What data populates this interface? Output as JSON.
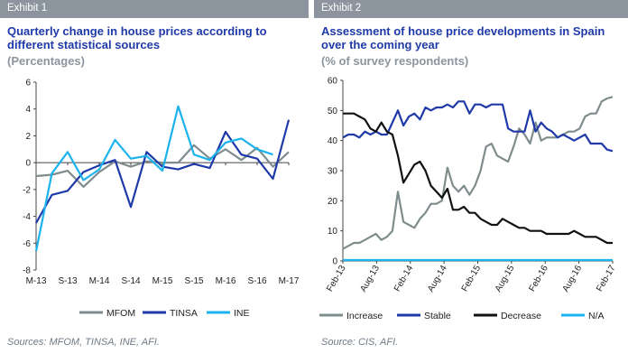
{
  "panels": [
    {
      "exhibit": "Exhibit 1",
      "title": "Quarterly change in house prices according to different statistical sources",
      "subtitle": "(Percentages)",
      "source": "Sources: MFOM, TINSA, INE, AFI."
    },
    {
      "exhibit": "Exhibit 2",
      "title": "Assessment of house price developments in Spain over the coming year",
      "subtitle": "(% of survey respondents)",
      "source": "Source: CIS, AFI."
    }
  ],
  "chart_data": [
    {
      "type": "line",
      "ylim": [
        -8,
        6
      ],
      "yticks": [
        -8,
        -6,
        -4,
        -2,
        0,
        2,
        4,
        6
      ],
      "xtick_labels": [
        "M-13",
        "S-13",
        "M-14",
        "S-14",
        "M-15",
        "S-15",
        "M-16",
        "S-16",
        "M-17"
      ],
      "grid": false,
      "legend_position": "bottom",
      "series": [
        {
          "name": "MFOM",
          "color": "#7f8c8d",
          "values": [
            -1.0,
            -0.9,
            -0.6,
            -1.8,
            -0.7,
            0.1,
            -0.3,
            0.1,
            0.0,
            0.0,
            1.3,
            0.3,
            1.0,
            0.2,
            1.1,
            -0.3,
            0.8
          ]
        },
        {
          "name": "TINSA",
          "color": "#1f3aa8",
          "values": [
            -4.5,
            -2.4,
            -2.1,
            -0.7,
            -0.2,
            0.2,
            -3.3,
            0.8,
            -0.3,
            -0.5,
            -0.1,
            -0.4,
            2.3,
            0.6,
            0.3,
            -1.2,
            3.2
          ]
        },
        {
          "name": "INE",
          "color": "#1ab3ee",
          "values": [
            -6.6,
            -0.8,
            0.8,
            -1.3,
            -0.5,
            1.7,
            0.3,
            0.5,
            -0.6,
            4.2,
            0.6,
            0.2,
            1.5,
            1.8,
            1.0,
            0.6
          ]
        }
      ]
    },
    {
      "type": "line",
      "ylim": [
        0,
        60
      ],
      "yticks": [
        0,
        10,
        20,
        30,
        40,
        50,
        60
      ],
      "xtick_labels": [
        "Feb-13",
        "Aug-13",
        "Feb-14",
        "Aug-14",
        "Feb-15",
        "Aug-15",
        "Feb-16",
        "Aug-16",
        "Feb-17"
      ],
      "grid": false,
      "legend_position": "bottom",
      "series": [
        {
          "name": "Increase",
          "color": "#7f8c8d",
          "values": [
            4,
            5,
            6,
            6,
            7,
            8,
            9,
            7,
            8,
            10,
            23,
            13,
            12,
            11,
            14,
            16,
            19,
            19,
            20,
            31,
            25,
            23,
            25,
            22,
            25,
            30,
            38,
            39,
            35,
            34,
            33,
            38,
            44,
            42,
            39,
            46,
            40,
            41,
            41,
            41,
            42,
            43,
            43,
            44,
            48,
            49,
            49,
            53,
            54,
            54.5
          ]
        },
        {
          "name": "Stable",
          "color": "#1f3aa8",
          "values": [
            41,
            42,
            42,
            41,
            43,
            42,
            43,
            42,
            42,
            46,
            50,
            45,
            48,
            49,
            47,
            51,
            50,
            51,
            51,
            52,
            51,
            53,
            53,
            49,
            52,
            52,
            51,
            52,
            52,
            52,
            44,
            43,
            43,
            43,
            50,
            43,
            46,
            44,
            43,
            41,
            42,
            41,
            40,
            41,
            42,
            39,
            39,
            39,
            37,
            36.5
          ]
        },
        {
          "name": "Decrease",
          "color": "#111111",
          "values": [
            49,
            49,
            49,
            48,
            47,
            44,
            43,
            46,
            43,
            42,
            35,
            26,
            29,
            32,
            33,
            30,
            25,
            23,
            21,
            24,
            17,
            17,
            18,
            16,
            16,
            14,
            13,
            12,
            12,
            14,
            13,
            12,
            11,
            11,
            10,
            10,
            10,
            9,
            9,
            9,
            9,
            9,
            10,
            9,
            8,
            8,
            8,
            7,
            6,
            6
          ]
        },
        {
          "name": "N/A",
          "color": "#1ab3ee",
          "values": [
            0.3,
            0.3,
            0.3,
            0.3,
            0.3,
            0.3,
            0.3,
            0.3,
            0.3,
            0.3,
            0.3,
            0.3,
            0.3,
            0.3,
            0.3,
            0.3,
            0.3,
            0.3,
            0.3,
            0.3,
            0.3,
            0.3,
            0.3,
            0.3,
            0.3,
            0.3,
            0.3,
            0.3,
            0.3,
            0.3,
            0.3,
            0.3,
            0.3,
            0.3,
            0.3,
            0.3,
            0.3,
            0.3,
            0.3,
            0.3,
            0.3,
            0.3,
            0.3,
            0.3,
            0.3,
            0.3,
            0.3,
            0.3,
            0.3,
            0.3
          ]
        }
      ]
    }
  ]
}
